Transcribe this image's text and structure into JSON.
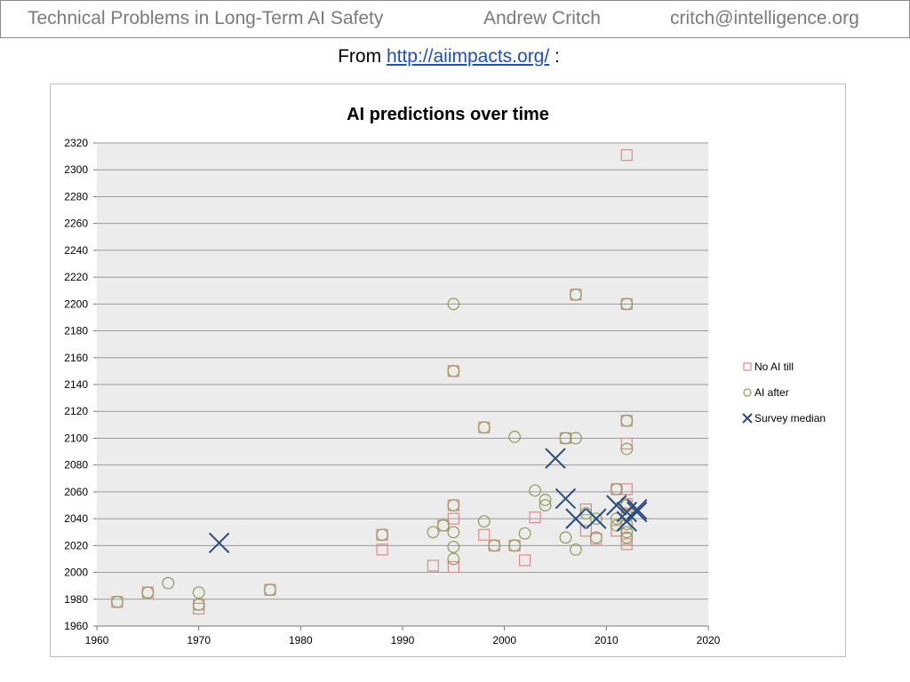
{
  "header": {
    "title": "Technical Problems in Long-Term AI Safety",
    "author": "Andrew Critch",
    "email": "critch@intelligence.org"
  },
  "source": {
    "prefix": "From",
    "link_text": "http://aiimpacts.org/",
    "suffix": ":"
  },
  "chart_data": {
    "type": "scatter",
    "title": "AI predictions over time",
    "xlabel": "",
    "ylabel": "",
    "xlim": [
      1960,
      2020
    ],
    "ylim": [
      1960,
      2320
    ],
    "x_ticks": [
      1960,
      1970,
      1980,
      1990,
      2000,
      2010,
      2020
    ],
    "y_ticks": [
      1960,
      1980,
      2000,
      2020,
      2040,
      2060,
      2080,
      2100,
      2120,
      2140,
      2160,
      2180,
      2200,
      2220,
      2240,
      2260,
      2280,
      2300,
      2320
    ],
    "grid": "horizontal",
    "legend_position": "right",
    "series": [
      {
        "name": "No AI till",
        "marker": "square",
        "color": "#d98a8a",
        "points": [
          [
            1962,
            1978
          ],
          [
            1965,
            1985
          ],
          [
            1970,
            1973
          ],
          [
            1970,
            1976
          ],
          [
            1977,
            1987
          ],
          [
            1988,
            2017
          ],
          [
            1988,
            2028
          ],
          [
            1993,
            2005
          ],
          [
            1994,
            2035
          ],
          [
            1995,
            2004
          ],
          [
            1995,
            2040
          ],
          [
            1995,
            2050
          ],
          [
            1995,
            2150
          ],
          [
            1998,
            2028
          ],
          [
            1998,
            2108
          ],
          [
            1999,
            2020
          ],
          [
            2001,
            2020
          ],
          [
            2002,
            2009
          ],
          [
            2003,
            2041
          ],
          [
            2006,
            2100
          ],
          [
            2007,
            2207
          ],
          [
            2008,
            2047
          ],
          [
            2008,
            2031
          ],
          [
            2009,
            2025
          ],
          [
            2011,
            2031
          ],
          [
            2011,
            2062
          ],
          [
            2012,
            2311
          ],
          [
            2012,
            2200
          ],
          [
            2012,
            2113
          ],
          [
            2012,
            2096
          ],
          [
            2012,
            2062
          ],
          [
            2012,
            2051
          ],
          [
            2012,
            2044
          ],
          [
            2012,
            2025
          ],
          [
            2012,
            2021
          ]
        ]
      },
      {
        "name": "AI after",
        "marker": "circle",
        "color": "#8f9a55",
        "points": [
          [
            1962,
            1978
          ],
          [
            1965,
            1985
          ],
          [
            1967,
            1992
          ],
          [
            1970,
            1985
          ],
          [
            1970,
            1976
          ],
          [
            1977,
            1987
          ],
          [
            1988,
            2028
          ],
          [
            1993,
            2030
          ],
          [
            1994,
            2035
          ],
          [
            1995,
            2200
          ],
          [
            1995,
            2150
          ],
          [
            1995,
            2050
          ],
          [
            1995,
            2030
          ],
          [
            1995,
            2019
          ],
          [
            1995,
            2010
          ],
          [
            1998,
            2108
          ],
          [
            1998,
            2038
          ],
          [
            1999,
            2020
          ],
          [
            2001,
            2101
          ],
          [
            2001,
            2020
          ],
          [
            2002,
            2029
          ],
          [
            2003,
            2061
          ],
          [
            2004,
            2050
          ],
          [
            2004,
            2054
          ],
          [
            2006,
            2100
          ],
          [
            2006,
            2026
          ],
          [
            2007,
            2207
          ],
          [
            2007,
            2100
          ],
          [
            2007,
            2017
          ],
          [
            2008,
            2044
          ],
          [
            2009,
            2026
          ],
          [
            2009,
            2040
          ],
          [
            2011,
            2062
          ],
          [
            2011,
            2040
          ],
          [
            2011,
            2035
          ],
          [
            2012,
            2200
          ],
          [
            2012,
            2113
          ],
          [
            2012,
            2092
          ],
          [
            2012,
            2050
          ],
          [
            2012,
            2042
          ],
          [
            2012,
            2036
          ],
          [
            2012,
            2030
          ],
          [
            2012,
            2026
          ]
        ]
      },
      {
        "name": "Survey median",
        "marker": "x",
        "color": "#2b4c7e",
        "points": [
          [
            1972,
            2022
          ],
          [
            2005,
            2085
          ],
          [
            2006,
            2055
          ],
          [
            2007,
            2040
          ],
          [
            2009,
            2040
          ],
          [
            2011,
            2050
          ],
          [
            2012,
            2045
          ],
          [
            2012,
            2038
          ],
          [
            2013,
            2047
          ],
          [
            2013,
            2045
          ]
        ]
      }
    ]
  }
}
